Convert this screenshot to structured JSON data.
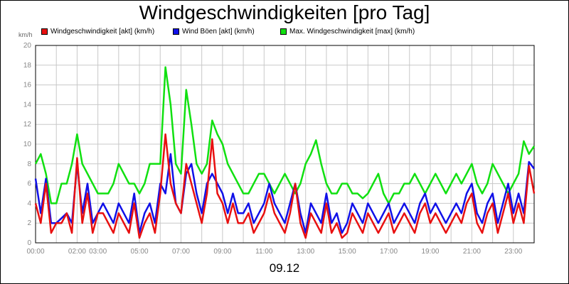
{
  "title": "Windgeschwindigkeiten [pro Tag]",
  "unit_label": "km/h",
  "date_label": "09.12",
  "legend": [
    {
      "label": "Windgeschwindigkeit [akt] (km/h)",
      "color": "#e81010"
    },
    {
      "label": "Wind Böen [akt] (km/h)",
      "color": "#1010e8"
    },
    {
      "label": "Max. Windgeschwindigkeit [max] (km/h)",
      "color": "#10e010"
    }
  ],
  "chart_data": {
    "type": "line",
    "title": "Windgeschwindigkeiten [pro Tag]",
    "ylabel": "km/h",
    "xlabel": "09.12",
    "ylim": [
      0,
      20
    ],
    "yticks": [
      "0",
      "2",
      "4",
      "6",
      "8",
      "10",
      "12",
      "14",
      "16",
      "18",
      "20"
    ],
    "xlim": [
      0,
      24
    ],
    "xticks": [
      {
        "h": 0,
        "label": "00:00"
      },
      {
        "h": 2,
        "label": "02:00"
      },
      {
        "h": 3,
        "label": "03:00"
      },
      {
        "h": 5,
        "label": "05:00"
      },
      {
        "h": 7,
        "label": "07:00"
      },
      {
        "h": 9,
        "label": "09:00"
      },
      {
        "h": 11,
        "label": "11:00"
      },
      {
        "h": 13,
        "label": "13:00"
      },
      {
        "h": 15,
        "label": "15:00"
      },
      {
        "h": 17,
        "label": "17:00"
      },
      {
        "h": 19,
        "label": "19:00"
      },
      {
        "h": 21,
        "label": "21:00"
      },
      {
        "h": 23,
        "label": "23:00"
      }
    ],
    "grid": true,
    "legend_position": "top",
    "series": [
      {
        "name": "Max. Windgeschwindigkeit [max] (km/h)",
        "color": "#10e010",
        "x": [
          0,
          0.25,
          0.5,
          0.75,
          1,
          1.25,
          1.5,
          1.75,
          2,
          2.25,
          2.5,
          2.75,
          3,
          3.25,
          3.5,
          3.75,
          4,
          4.25,
          4.5,
          4.75,
          5,
          5.25,
          5.5,
          5.75,
          6,
          6.25,
          6.5,
          6.75,
          7,
          7.25,
          7.5,
          7.75,
          8,
          8.25,
          8.5,
          8.75,
          9,
          9.25,
          9.5,
          9.75,
          10,
          10.25,
          10.5,
          10.75,
          11,
          11.25,
          11.5,
          11.75,
          12,
          12.25,
          12.5,
          12.75,
          13,
          13.25,
          13.5,
          13.75,
          14,
          14.25,
          14.5,
          14.75,
          15,
          15.25,
          15.5,
          15.75,
          16,
          16.25,
          16.5,
          16.75,
          17,
          17.25,
          17.5,
          17.75,
          18,
          18.25,
          18.5,
          18.75,
          19,
          19.25,
          19.5,
          19.75,
          20,
          20.25,
          20.5,
          20.75,
          21,
          21.25,
          21.5,
          21.75,
          22,
          22.25,
          22.5,
          22.75,
          23,
          23.25,
          23.5,
          23.75,
          24
        ],
        "y": [
          8,
          9,
          7,
          4,
          4,
          6,
          6,
          8,
          11,
          8,
          7,
          6,
          5,
          5,
          5,
          6,
          8,
          7,
          6,
          6,
          5,
          6,
          8,
          8,
          8,
          17.8,
          14,
          8,
          7,
          15.5,
          12,
          8,
          7,
          8,
          12.4,
          11,
          10,
          8,
          7,
          6,
          5,
          5,
          6,
          7,
          7,
          6,
          5,
          6,
          7,
          6,
          5,
          6,
          8,
          9,
          10.4,
          8,
          6,
          5,
          5,
          6,
          6,
          5,
          5,
          4.5,
          5,
          6,
          7,
          5,
          4,
          5,
          5,
          6,
          6,
          7,
          6,
          5,
          6,
          7,
          6,
          5,
          6,
          7,
          6,
          7,
          8,
          6,
          5,
          6,
          8,
          7,
          6,
          5,
          6,
          7,
          10.3,
          9,
          9.8
        ]
      },
      {
        "name": "Wind Böen [akt] (km/h)",
        "color": "#1010e8",
        "x": [
          0,
          0.25,
          0.5,
          0.75,
          1,
          1.25,
          1.5,
          1.75,
          2,
          2.25,
          2.5,
          2.75,
          3,
          3.25,
          3.5,
          3.75,
          4,
          4.25,
          4.5,
          4.75,
          5,
          5.25,
          5.5,
          5.75,
          6,
          6.25,
          6.5,
          6.75,
          7,
          7.25,
          7.5,
          7.75,
          8,
          8.25,
          8.5,
          8.75,
          9,
          9.25,
          9.5,
          9.75,
          10,
          10.25,
          10.5,
          10.75,
          11,
          11.25,
          11.5,
          11.75,
          12,
          12.25,
          12.5,
          12.75,
          13,
          13.25,
          13.5,
          13.75,
          14,
          14.25,
          14.5,
          14.75,
          15,
          15.25,
          15.5,
          15.75,
          16,
          16.25,
          16.5,
          16.75,
          17,
          17.25,
          17.5,
          17.75,
          18,
          18.25,
          18.5,
          18.75,
          19,
          19.25,
          19.5,
          19.75,
          20,
          20.25,
          20.5,
          20.75,
          21,
          21.25,
          21.5,
          21.75,
          22,
          22.25,
          22.5,
          22.75,
          23,
          23.25,
          23.5,
          23.75,
          24
        ],
        "y": [
          6.5,
          3,
          6.5,
          2,
          2,
          2.5,
          3,
          2,
          8,
          3,
          6,
          2,
          3,
          4,
          3,
          2,
          4,
          3,
          2,
          5,
          1,
          3,
          4,
          2,
          6,
          5,
          9,
          4,
          3,
          7,
          8,
          5,
          3,
          6,
          7,
          6,
          5,
          3,
          5,
          3,
          3,
          4,
          2,
          3,
          4,
          6,
          4,
          3,
          2,
          4,
          6,
          3,
          1,
          4,
          3,
          2,
          5,
          2,
          3,
          1,
          2,
          4,
          3,
          2,
          4,
          3,
          2,
          3,
          4,
          2,
          3,
          4,
          3,
          2,
          4,
          5,
          3,
          4,
          3,
          2,
          3,
          4,
          3,
          5,
          6,
          3,
          2,
          4,
          5,
          2,
          4,
          6,
          3,
          5,
          3,
          8.2,
          7.5
        ]
      },
      {
        "name": "Windgeschwindigkeit [akt] (km/h)",
        "color": "#e81010",
        "x": [
          0,
          0.25,
          0.5,
          0.75,
          1,
          1.25,
          1.5,
          1.75,
          2,
          2.25,
          2.5,
          2.75,
          3,
          3.25,
          3.5,
          3.75,
          4,
          4.25,
          4.5,
          4.75,
          5,
          5.25,
          5.5,
          5.75,
          6,
          6.25,
          6.5,
          6.75,
          7,
          7.25,
          7.5,
          7.75,
          8,
          8.25,
          8.5,
          8.75,
          9,
          9.25,
          9.5,
          9.75,
          10,
          10.25,
          10.5,
          10.75,
          11,
          11.25,
          11.5,
          11.75,
          12,
          12.25,
          12.5,
          12.75,
          13,
          13.25,
          13.5,
          13.75,
          14,
          14.25,
          14.5,
          14.75,
          15,
          15.25,
          15.5,
          15.75,
          16,
          16.25,
          16.5,
          16.75,
          17,
          17.25,
          17.5,
          17.75,
          18,
          18.25,
          18.5,
          18.75,
          19,
          19.25,
          19.5,
          19.75,
          20,
          20.25,
          20.5,
          20.75,
          21,
          21.25,
          21.5,
          21.75,
          22,
          22.25,
          22.5,
          22.75,
          23,
          23.25,
          23.5,
          23.75,
          24
        ],
        "y": [
          4,
          2,
          6,
          1,
          2,
          2,
          3,
          1,
          8.6,
          2,
          5,
          1,
          3,
          3,
          2,
          1,
          3,
          2,
          1,
          4,
          0.5,
          2,
          3,
          1,
          5,
          11,
          6,
          4,
          3,
          8,
          6,
          4,
          2,
          5,
          10.5,
          5,
          4,
          2,
          4,
          2,
          2,
          3,
          1,
          2,
          3,
          5,
          3,
          2,
          1,
          3,
          6,
          2,
          0.5,
          3,
          2,
          1,
          4,
          1,
          2,
          0.5,
          1,
          3,
          2,
          1,
          3,
          2,
          1,
          2,
          3,
          1,
          2,
          3,
          2,
          1,
          3,
          4,
          2,
          3,
          2,
          1,
          2,
          3,
          2,
          4,
          5,
          2,
          1,
          3,
          4,
          1,
          3,
          5,
          2,
          4,
          2,
          7.8,
          5
        ]
      }
    ]
  }
}
